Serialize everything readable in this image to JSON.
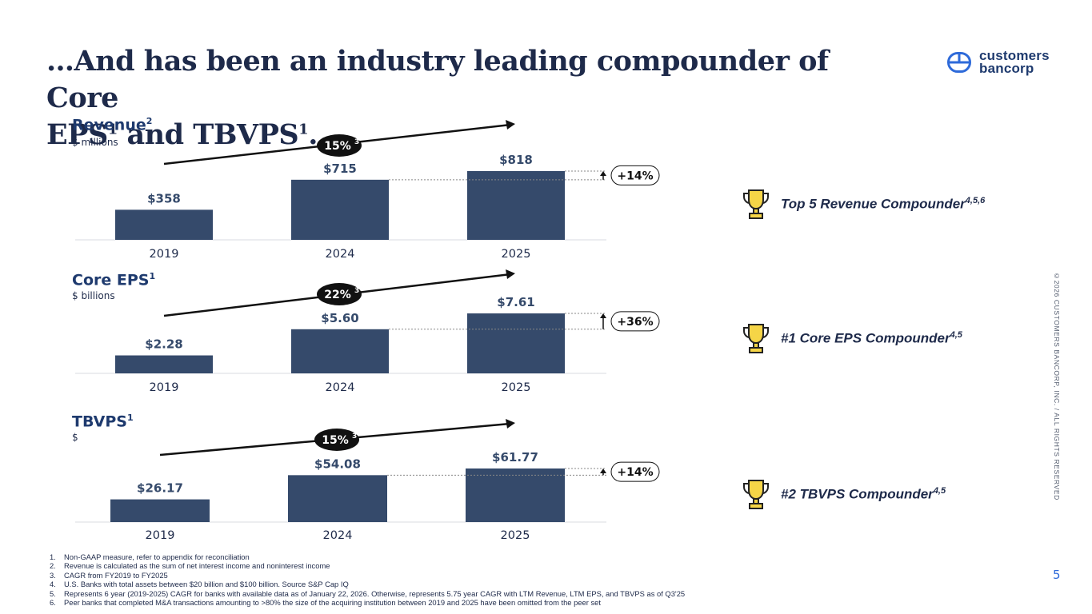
{
  "title": {
    "line1": "…And has been an industry leading compounder of Core",
    "line2a": "EPS",
    "sup1": "1",
    "line2b": " and TBVPS",
    "sup2": "1",
    "line2c": "…"
  },
  "logo": {
    "line1": "customers",
    "line2": "bancorp",
    "icon": "customers-bancorp-logo-icon"
  },
  "colors": {
    "bar": "#354a6b",
    "navy": "#1e2a4a",
    "accent_blue": "#2e6ad9",
    "trophy": "#f5d547",
    "badge_bg": "#111111"
  },
  "chart_data": [
    {
      "type": "bar",
      "title": "Revenue",
      "title_sup": "2",
      "unit": "$ millions",
      "categories": [
        "2019",
        "2024",
        "2025"
      ],
      "values": [
        358,
        715,
        818
      ],
      "labels": [
        "$358",
        "$715",
        "$818"
      ],
      "ylim": [
        0,
        818
      ],
      "cagr": "15%",
      "cagr_sup": "3",
      "change": "+14%"
    },
    {
      "type": "bar",
      "title": "Core EPS",
      "title_sup": "1",
      "unit": "$ billions",
      "categories": [
        "2019",
        "2024",
        "2025"
      ],
      "values": [
        2.28,
        5.6,
        7.61
      ],
      "labels": [
        "$2.28",
        "$5.60",
        "$7.61"
      ],
      "ylim": [
        0,
        7.61
      ],
      "cagr": "22%",
      "cagr_sup": "3",
      "change": "+36%"
    },
    {
      "type": "bar",
      "title": "TBVPS",
      "title_sup": "1",
      "unit": "$",
      "categories": [
        "2019",
        "2024",
        "2025"
      ],
      "values": [
        26.17,
        54.08,
        61.77
      ],
      "labels": [
        "$26.17",
        "$54.08",
        "$61.77"
      ],
      "ylim": [
        0,
        61.77
      ],
      "cagr": "15%",
      "cagr_sup": "3",
      "change": "+14%"
    }
  ],
  "awards": [
    {
      "label": "Top 5 Revenue Compounder",
      "sup": "4,5,6",
      "icon": "trophy-icon"
    },
    {
      "label": "#1 Core EPS Compounder",
      "sup": "4,5",
      "icon": "trophy-icon"
    },
    {
      "label": "#2 TBVPS Compounder",
      "sup": "4,5",
      "icon": "trophy-icon"
    }
  ],
  "footnotes": [
    {
      "num": "1.",
      "text": "Non-GAAP measure, refer to appendix for reconciliation"
    },
    {
      "num": "2.",
      "text": "Revenue is calculated as the sum of net interest income and noninterest income"
    },
    {
      "num": "3.",
      "text": "CAGR from FY2019 to FY2025"
    },
    {
      "num": "4.",
      "text": "U.S. Banks with total assets between $20 billion and $100 billion. Source S&P Cap IQ"
    },
    {
      "num": "5.",
      "text": "Represents 6 year (2019-2025) CAGR for banks with available data as of January 22, 2026. Otherwise, represents 5.75 year CAGR with LTM Revenue, LTM EPS, and TBVPS as of Q3'25"
    },
    {
      "num": "6.",
      "text": "Peer banks that completed M&A transactions amounting to >80% the size of the acquiring institution between 2019 and 2025 have been omitted from the peer set"
    }
  ],
  "page_number": "5",
  "copyright": "©2026 CUSTOMERS BANCORP, INC. / ALL RIGHTS RESERVED"
}
